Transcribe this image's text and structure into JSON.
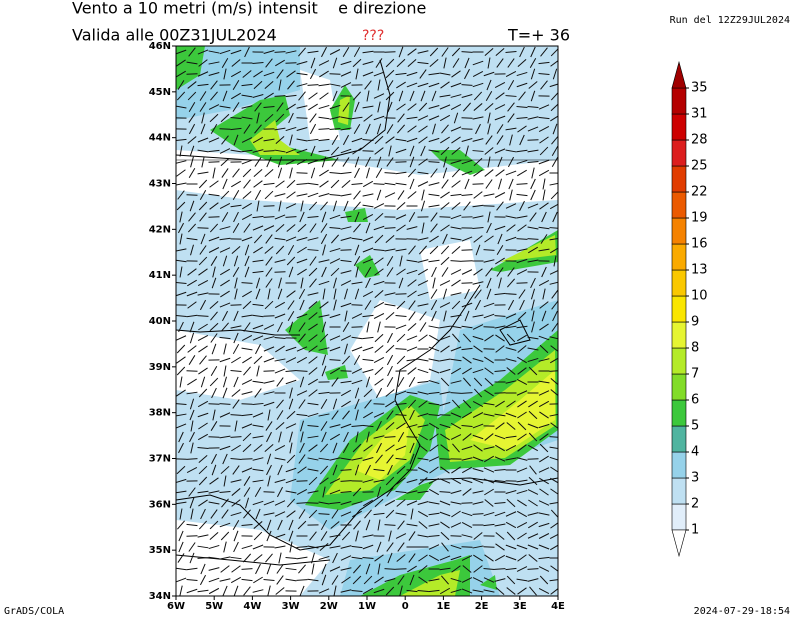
{
  "header": {
    "title": "Vento a 10 metri (m/s) intensit    e direzione",
    "valid": "Valida alle 00Z31JUL2024",
    "unknown": "???",
    "forecast": "T=+ 36",
    "run": "Run del 12Z29JUL2024"
  },
  "map": {
    "lat_labels": [
      "34N",
      "35N",
      "36N",
      "37N",
      "38N",
      "39N",
      "40N",
      "41N",
      "42N",
      "43N",
      "44N",
      "45N",
      "46N"
    ],
    "lon_labels": [
      "6W",
      "5W",
      "4W",
      "3W",
      "2W",
      "1W",
      "0",
      "1E",
      "2E",
      "3E",
      "4E"
    ]
  },
  "colorbar": {
    "levels": [
      1,
      2,
      3,
      4,
      5,
      6,
      7,
      8,
      9,
      10,
      13,
      16,
      19,
      22,
      25,
      28,
      31,
      35
    ],
    "colors": [
      "#e1eefa",
      "#bfe0f2",
      "#96d2ea",
      "#50b4a0",
      "#3cc83c",
      "#82dc28",
      "#b4eb28",
      "#e6f532",
      "#fae600",
      "#fac800",
      "#faaa00",
      "#f58200",
      "#eb5a00",
      "#e13c00",
      "#dc1e1e",
      "#cd0000",
      "#b40000"
    ],
    "under_color": "#ffffff",
    "over_color": "#a00000"
  },
  "footer": {
    "left": "GrADS/COLA",
    "right": "2024-07-29-18:54"
  }
}
